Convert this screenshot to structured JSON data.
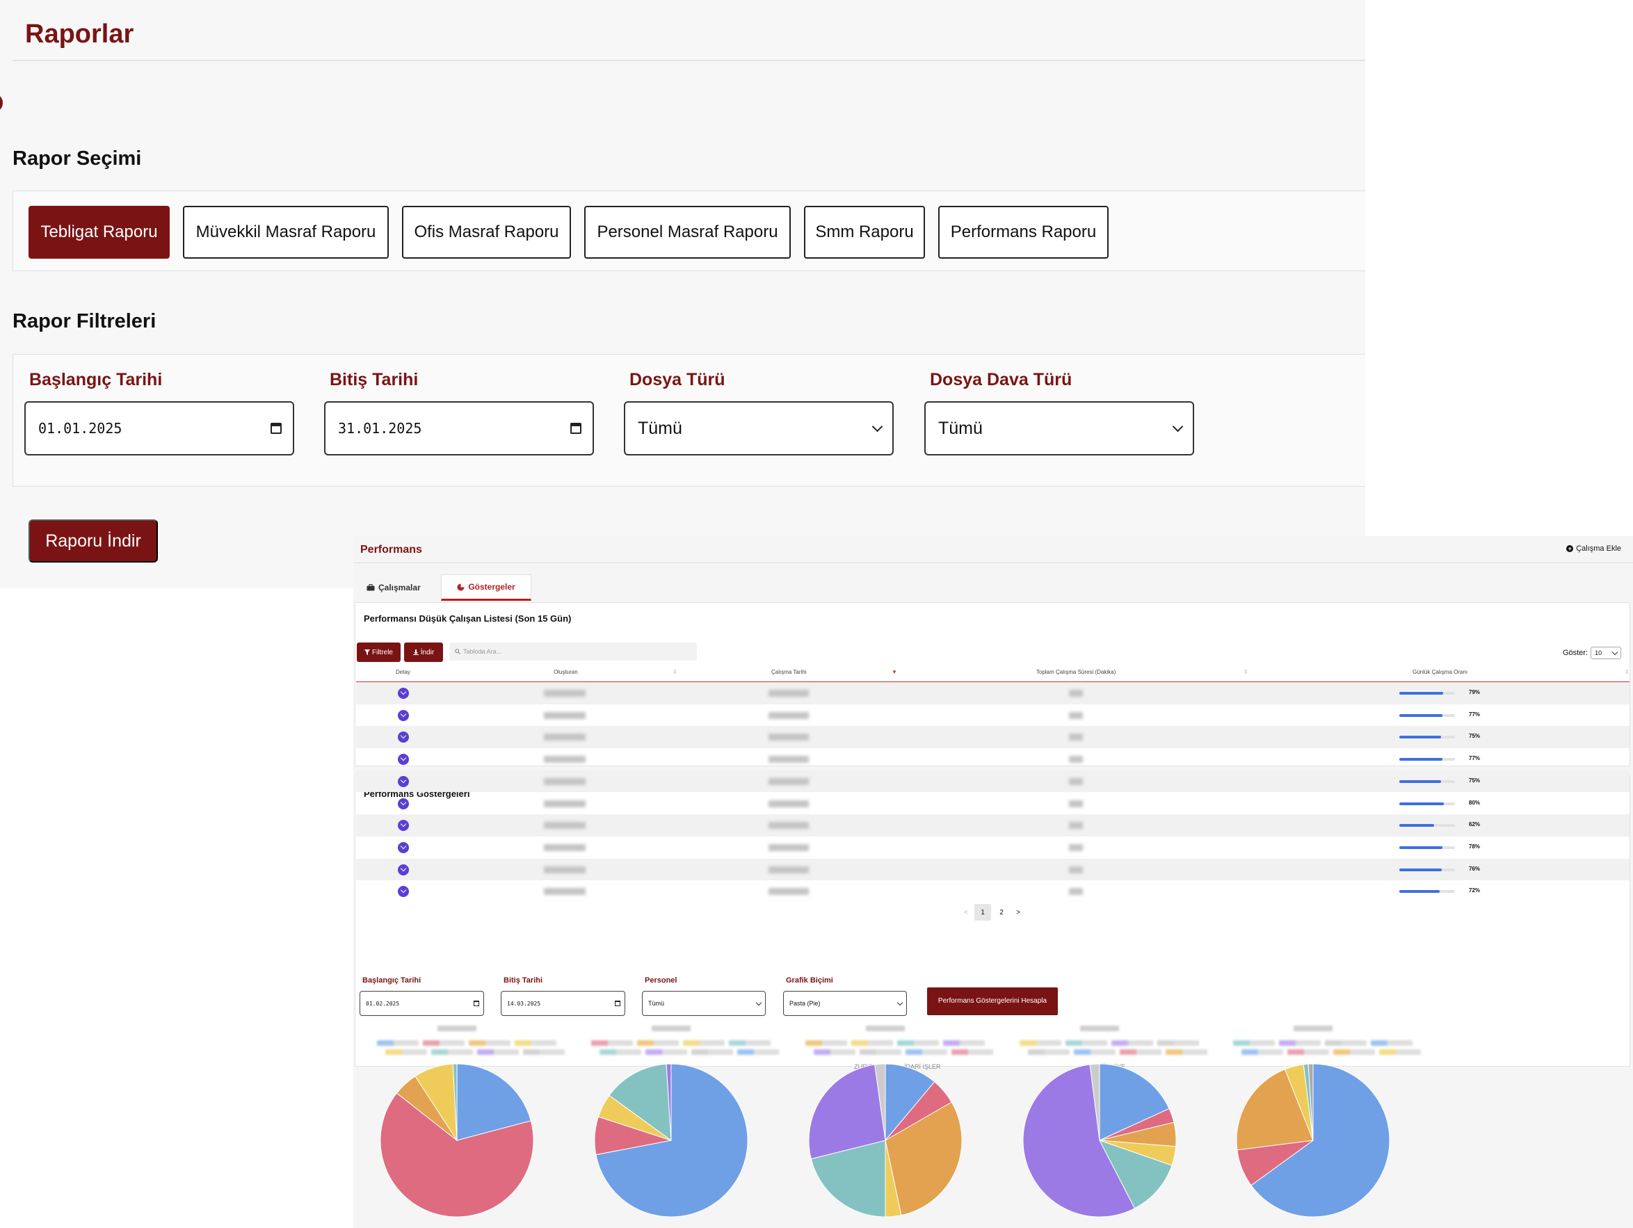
{
  "reports": {
    "title": "Raporlar",
    "selection_heading": "Rapor Seçimi",
    "report_buttons": [
      "Tebligat Raporu",
      "Müvekkil Masraf Raporu",
      "Ofis Masraf Raporu",
      "Personel Masraf Raporu",
      "Smm Raporu",
      "Performans Raporu"
    ],
    "active_report": "Tebligat Raporu",
    "filters_heading": "Rapor Filtreleri",
    "filters": {
      "start_label": "Başlangıç Tarihi",
      "start_value": "01.01.2025",
      "end_label": "Bitiş Tarihi",
      "end_value": "31.01.2025",
      "file_type_label": "Dosya Türü",
      "file_type_value": "Tümü",
      "case_type_label": "Dosya Dava Türü",
      "case_type_value": "Tümü"
    },
    "download_button": "Raporu İndir"
  },
  "performance": {
    "title": "Performans",
    "add_work": "Çalışma Ekle",
    "tabs": [
      {
        "label": "Çalışmalar",
        "icon": "briefcase-icon",
        "active": false
      },
      {
        "label": "Göstergeler",
        "icon": "pie-chart-icon",
        "active": true
      }
    ],
    "low_list": {
      "title": "Performansı Düşük Çalışan Listesi (Son 15 Gün)",
      "filter_button": "Filtrele",
      "download_button": "İndir",
      "search_placeholder": "Tabloda Ara...",
      "show_label": "Göster:",
      "show_value": "10",
      "columns": [
        "Detay",
        "Oluşturan",
        "Çalışma Tarihi",
        "Toplam Çalışma Süresi (Dakika)",
        "Günlük Çalışma Oranı"
      ],
      "rates": [
        79,
        77,
        75,
        77,
        75,
        80,
        62,
        78,
        76,
        72
      ],
      "rate_labels": [
        "79%",
        "77%",
        "75%",
        "77%",
        "75%",
        "80%",
        "62%",
        "78%",
        "76%",
        "72%"
      ],
      "pagination": {
        "prev": "<",
        "pages": [
          "1",
          "2"
        ],
        "current": "1",
        "next": ">"
      }
    },
    "indicators": {
      "title": "Performans Göstergeleri",
      "start_label": "Başlangıç Tarihi",
      "start_value": "01.02.2025",
      "end_label": "Bitiş Tarihi",
      "end_value": "14.03.2025",
      "staff_label": "Personel",
      "staff_value": "Tümü",
      "chart_type_label": "Grafik Biçimi",
      "chart_type_value": "Pasta (Pie)",
      "calc_button": "Performans Göstergelerini Hesapla",
      "legend_fragments": [
        "ZURICH",
        "İDARİ İŞLER",
        "TÜRKİYE"
      ]
    },
    "colors": {
      "brand": "#7a1414",
      "bar": "#3f6fde",
      "detail": "#5b3fd0"
    }
  },
  "chart_data": [
    {
      "type": "pie",
      "colors": [
        "#6fa0e6",
        "#de6b80",
        "#e2a24f",
        "#efcc5a",
        "#84c2c2"
      ],
      "values": [
        20,
        62,
        5,
        8,
        0.8
      ]
    },
    {
      "type": "pie",
      "colors": [
        "#6fa0e6",
        "#de6b80",
        "#efcc5a",
        "#84c2c2",
        "#9b7ae6"
      ],
      "values": [
        72,
        8,
        5,
        14,
        1
      ]
    },
    {
      "type": "pie",
      "colors": [
        "#6fa0e6",
        "#de6b80",
        "#e2a24f",
        "#efcc5a",
        "#84c2c2",
        "#9b7ae6",
        "#cccccc"
      ],
      "values": [
        10,
        5,
        27,
        3,
        19,
        24,
        2
      ]
    },
    {
      "type": "pie",
      "colors": [
        "#6fa0e6",
        "#de6b80",
        "#e2a24f",
        "#efcc5a",
        "#84c2c2",
        "#9b7ae6",
        "#cccccc"
      ],
      "values": [
        18,
        3,
        5,
        4,
        12,
        55,
        2
      ]
    },
    {
      "type": "pie",
      "colors": [
        "#6fa0e6",
        "#de6b80",
        "#e2a24f",
        "#efcc5a",
        "#84c2c2",
        "#aaaaaa"
      ],
      "values": [
        65,
        8,
        21,
        4,
        1,
        1
      ]
    }
  ]
}
